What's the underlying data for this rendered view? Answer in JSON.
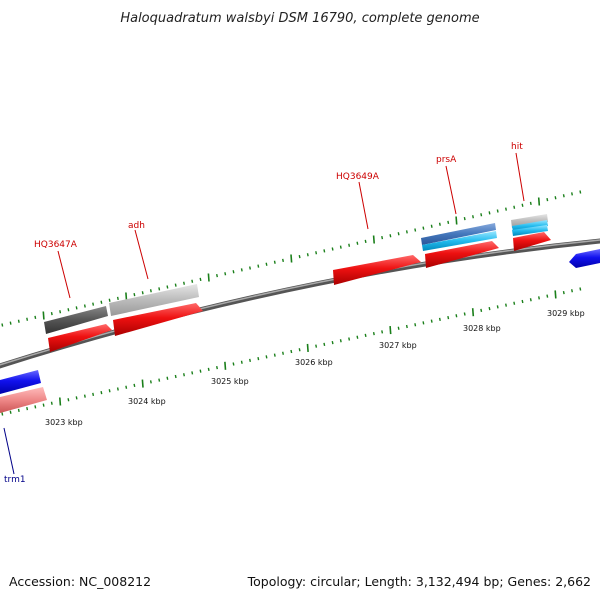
{
  "title": "Haloquadratum walsbyi DSM 16790, complete genome",
  "accession": "Accession: NC_008212",
  "summary": "Topology: circular; Length: 3,132,494 bp; Genes: 2,662",
  "scale_labels": [
    "3023 kbp",
    "3024 kbp",
    "3025 kbp",
    "3026 kbp",
    "3027 kbp",
    "3028 kbp",
    "3029 kbp"
  ],
  "gene_labels": [
    {
      "text": "HQ3647A",
      "strand": "forward"
    },
    {
      "text": "adh",
      "strand": "forward"
    },
    {
      "text": "HQ3649A",
      "strand": "forward"
    },
    {
      "text": "prsA",
      "strand": "forward"
    },
    {
      "text": "hit",
      "strand": "forward"
    },
    {
      "text": "trm1",
      "strand": "reverse"
    }
  ],
  "colors": {
    "forward_label": "#cc0000",
    "reverse_label": "#000088",
    "tick": "#1a7f1a",
    "backbone": "#888888",
    "cds": "#ee1111",
    "cds_reverse": "#1111ee",
    "pseudo_cds": "#ee8888",
    "gene_dark": "#555555",
    "gene_light": "#bbbbbb",
    "steelblue": "#4477bb",
    "cyan": "#22bbee"
  }
}
